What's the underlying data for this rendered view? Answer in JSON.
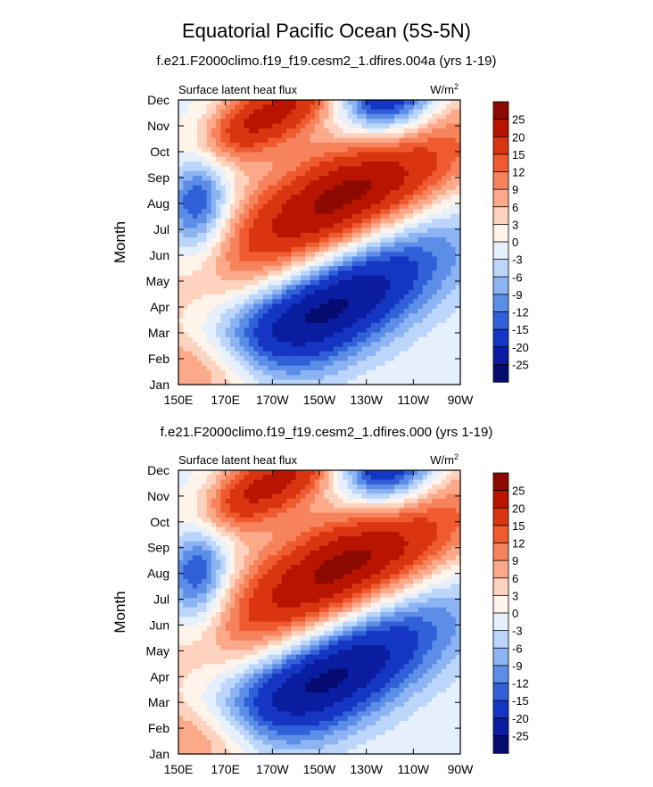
{
  "figure": {
    "title": "Equatorial Pacific Ocean (5S-5N)"
  },
  "colorbar": {
    "levels": [
      "25",
      "20",
      "15",
      "12",
      "9",
      "6",
      "3",
      "0",
      "-3",
      "-6",
      "-9",
      "-12",
      "-15",
      "-20",
      "-25"
    ],
    "colors": [
      "#8c0a00",
      "#b81400",
      "#d93510",
      "#ef5a2e",
      "#f7835c",
      "#fca98a",
      "#fdd3bf",
      "#fff3ea",
      "#e6f0fd",
      "#bcd6fb",
      "#8db4f2",
      "#5c8ee8",
      "#3160d8",
      "#1436c2",
      "#0a1ca0",
      "#040c70"
    ]
  },
  "chart_data": [
    {
      "type": "heatmap",
      "title": "f.e21.F2000climo.f19_f19.cesm2_1.dfires.004a (yrs 1-19)",
      "left_label": "Surface latent heat flux",
      "right_label": "W/m",
      "right_label_sup": "2",
      "ylabel": "Month",
      "x_ticks": [
        "150E",
        "170E",
        "170W",
        "150W",
        "130W",
        "110W",
        "90W"
      ],
      "y_ticks": [
        "Jan",
        "Feb",
        "Mar",
        "Apr",
        "May",
        "Jun",
        "Jul",
        "Aug",
        "Sep",
        "Oct",
        "Nov",
        "Dec"
      ],
      "xlim": [
        150,
        270
      ],
      "ylim": [
        1,
        12
      ],
      "anomaly_field": {
        "warm_peak": {
          "lon": 220,
          "month": 8.1,
          "value": 28
        },
        "cold_peak": {
          "lon": 212,
          "month": 4.0,
          "value": -28
        },
        "westward_propagation_slope_months_per_degree": 0.042,
        "west_edge_lon": 150,
        "east_edge_lon": 270
      }
    },
    {
      "type": "heatmap",
      "title": "f.e21.F2000climo.f19_f19.cesm2_1.dfires.000 (yrs 1-19)",
      "left_label": "Surface latent heat flux",
      "right_label": "W/m",
      "right_label_sup": "2",
      "ylabel": "Month",
      "x_ticks": [
        "150E",
        "170E",
        "170W",
        "150W",
        "130W",
        "110W",
        "90W"
      ],
      "y_ticks": [
        "Jan",
        "Feb",
        "Mar",
        "Apr",
        "May",
        "Jun",
        "Jul",
        "Aug",
        "Sep",
        "Oct",
        "Nov",
        "Dec"
      ],
      "xlim": [
        150,
        270
      ],
      "ylim": [
        1,
        12
      ],
      "anomaly_field": {
        "warm_peak": {
          "lon": 220,
          "month": 8.1,
          "value": 28
        },
        "cold_peak": {
          "lon": 212,
          "month": 4.0,
          "value": -28
        },
        "westward_propagation_slope_months_per_degree": 0.042,
        "west_edge_lon": 150,
        "east_edge_lon": 270
      }
    }
  ]
}
